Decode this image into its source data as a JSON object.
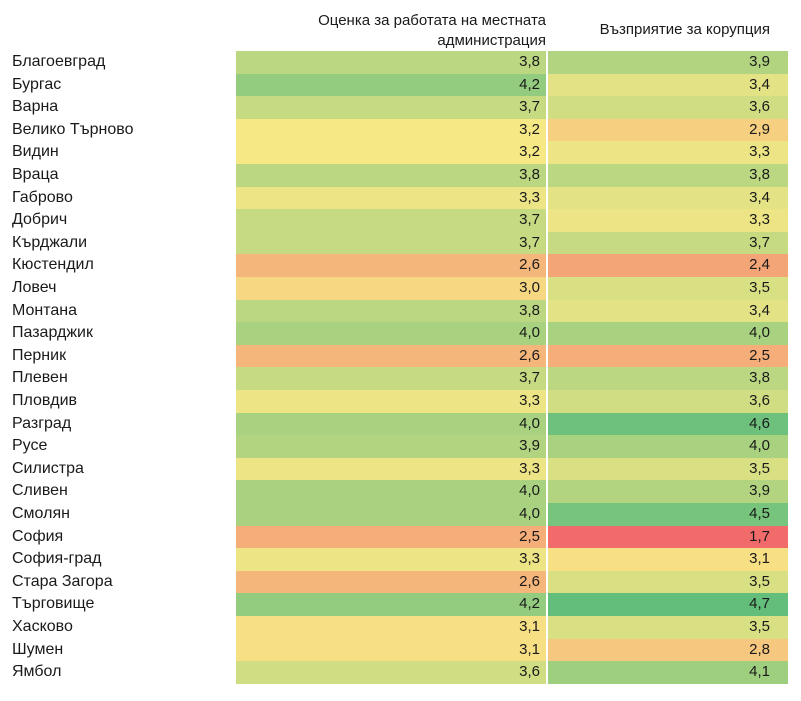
{
  "chart_data": {
    "type": "heatmap",
    "columns": [
      "Оценка за работата на местната администрация",
      "Възприятие за корупция"
    ],
    "header_lines": [
      [
        "Оценка за работата на местната",
        "администрация"
      ],
      [
        "Възприятие за корупция"
      ]
    ],
    "rows": [
      {
        "label": "Благоевград",
        "values": [
          "3,8",
          "3,9"
        ]
      },
      {
        "label": "Бургас",
        "values": [
          "4,2",
          "3,4"
        ]
      },
      {
        "label": "Варна",
        "values": [
          "3,7",
          "3,6"
        ]
      },
      {
        "label": "Велико Търново",
        "values": [
          "3,2",
          "2,9"
        ]
      },
      {
        "label": "Видин",
        "values": [
          "3,2",
          "3,3"
        ]
      },
      {
        "label": "Враца",
        "values": [
          "3,8",
          "3,8"
        ]
      },
      {
        "label": "Габрово",
        "values": [
          "3,3",
          "3,4"
        ]
      },
      {
        "label": "Добрич",
        "values": [
          "3,7",
          "3,3"
        ]
      },
      {
        "label": "Кърджали",
        "values": [
          "3,7",
          "3,7"
        ]
      },
      {
        "label": "Кюстендил",
        "values": [
          "2,6",
          "2,4"
        ]
      },
      {
        "label": "Ловеч",
        "values": [
          "3,0",
          "3,5"
        ]
      },
      {
        "label": "Монтана",
        "values": [
          "3,8",
          "3,4"
        ]
      },
      {
        "label": "Пазарджик",
        "values": [
          "4,0",
          "4,0"
        ]
      },
      {
        "label": "Перник",
        "values": [
          "2,6",
          "2,5"
        ]
      },
      {
        "label": "Плевен",
        "values": [
          "3,7",
          "3,8"
        ]
      },
      {
        "label": "Пловдив",
        "values": [
          "3,3",
          "3,6"
        ]
      },
      {
        "label": "Разград",
        "values": [
          "4,0",
          "4,6"
        ]
      },
      {
        "label": "Русе",
        "values": [
          "3,9",
          "4,0"
        ]
      },
      {
        "label": "Силистра",
        "values": [
          "3,3",
          "3,5"
        ]
      },
      {
        "label": "Сливен",
        "values": [
          "4,0",
          "3,9"
        ]
      },
      {
        "label": "Смолян",
        "values": [
          "4,0",
          "4,5"
        ]
      },
      {
        "label": "София",
        "values": [
          "2,5",
          "1,7"
        ]
      },
      {
        "label": "София-град",
        "values": [
          "3,3",
          "3,1"
        ]
      },
      {
        "label": "Стара Загора",
        "values": [
          "2,6",
          "3,5"
        ]
      },
      {
        "label": "Търговище",
        "values": [
          "4,2",
          "4,7"
        ]
      },
      {
        "label": "Хасково",
        "values": [
          "3,1",
          "3,5"
        ]
      },
      {
        "label": "Шумен",
        "values": [
          "3,1",
          "2,8"
        ]
      },
      {
        "label": "Ямбол",
        "values": [
          "3,6",
          "4,1"
        ]
      }
    ],
    "color_scale": {
      "low": "#f26b6b",
      "mid": "#f7e886",
      "high": "#63be7b"
    }
  }
}
